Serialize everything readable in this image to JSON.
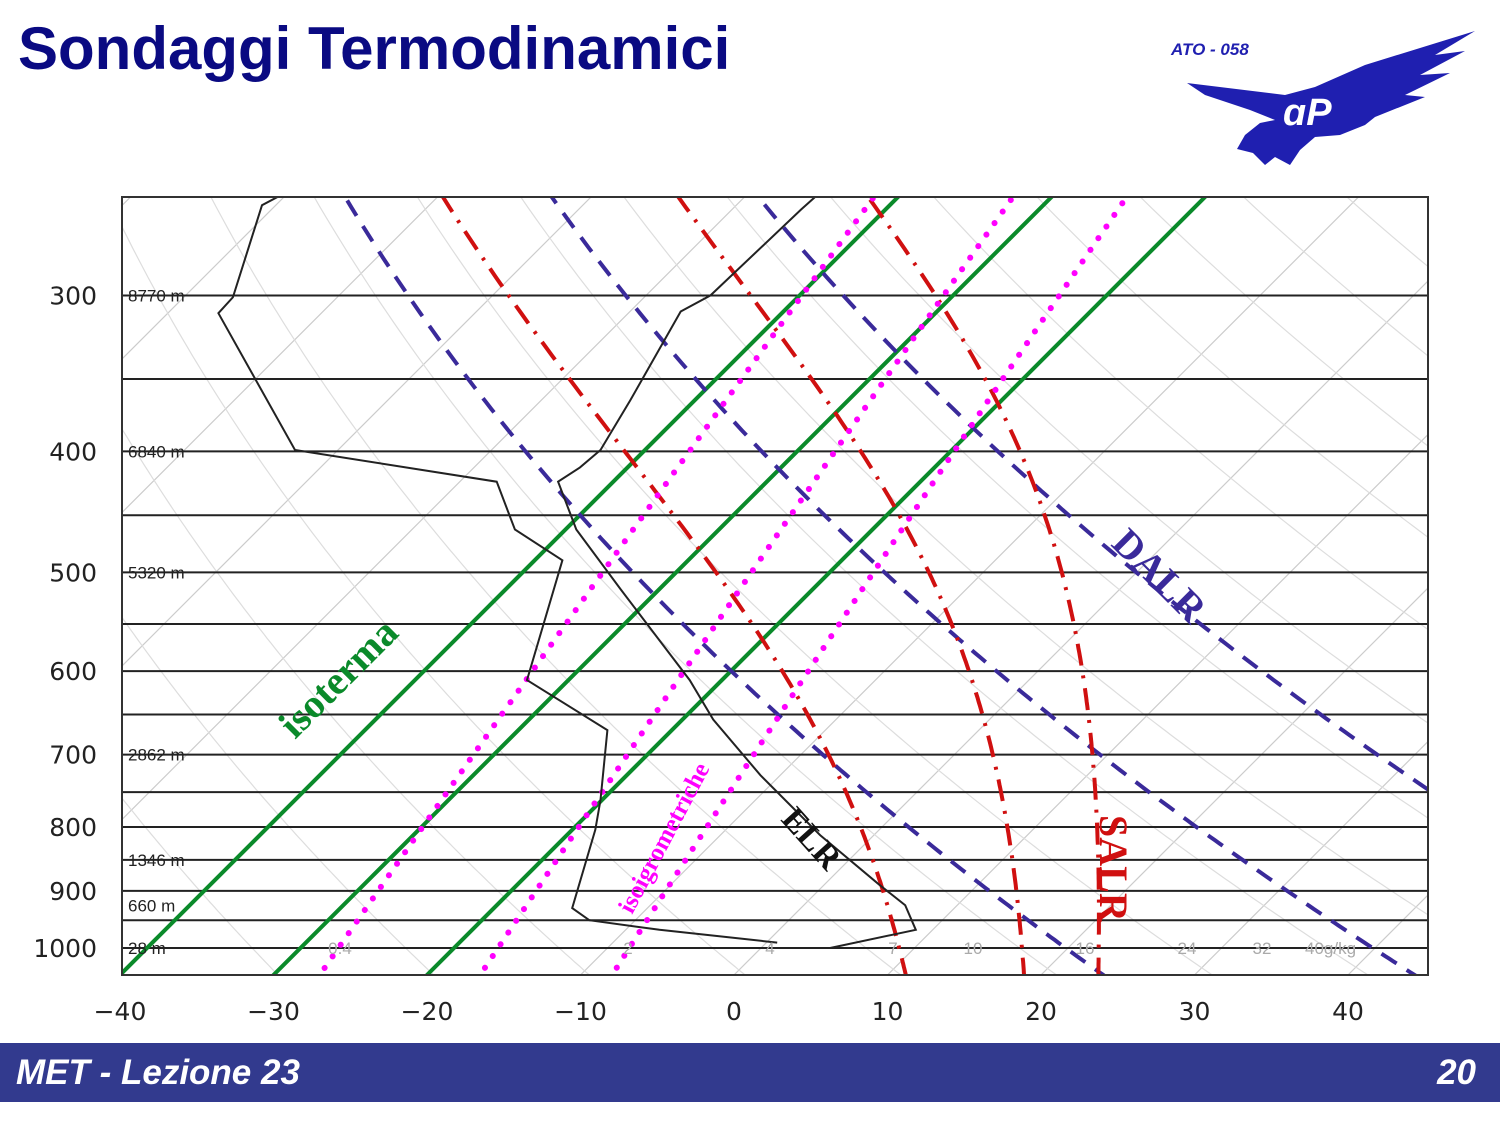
{
  "slide": {
    "title": "Sondaggi Termodinamici",
    "footer_left": "MET - Lezione 23",
    "page_number": "20"
  },
  "logo": {
    "text": "ATO - 058",
    "monogram": "ATP",
    "color": "#1f1fb0"
  },
  "colors": {
    "title": "#0a0a82",
    "footer_bg": "#323a8e",
    "isotherm": "#0a8a2a",
    "dalr": "#3a2a9a",
    "salr": "#d01010",
    "mixing_ratio": "#ff00ff",
    "sounding": "#222222"
  },
  "chart_data": {
    "type": "line",
    "diagram": "skew-T log-p",
    "x_axis": {
      "ticks": [
        -40,
        -30,
        -20,
        -10,
        0,
        10,
        20,
        30,
        40
      ],
      "tick_labels": [
        "-40",
        "-30",
        "-20",
        "-10",
        "0",
        "10",
        "20",
        "30",
        "40"
      ]
    },
    "y_axis": {
      "scale": "log",
      "inverted": true,
      "ticks": [
        300,
        400,
        500,
        600,
        700,
        800,
        900,
        1000
      ],
      "tick_labels": [
        "300",
        "400",
        "500",
        "600",
        "700",
        "800",
        "900",
        "1000"
      ],
      "range": [
        1050,
        250
      ],
      "gridlines": [
        300,
        350,
        400,
        450,
        500,
        550,
        600,
        650,
        700,
        750,
        800,
        850,
        900,
        950,
        1000
      ]
    },
    "height_labels": [
      {
        "p": 300,
        "text": "8770 m"
      },
      {
        "p": 400,
        "text": "6840 m"
      },
      {
        "p": 500,
        "text": "5320 m"
      },
      {
        "p": 700,
        "text": "2862 m"
      },
      {
        "p": 850,
        "text": "1346 m"
      },
      {
        "p": 925,
        "text": "660 m"
      },
      {
        "p": 1000,
        "text": "28 m"
      }
    ],
    "mixing_ratio_tick_labels": [
      "0.4",
      "2",
      "4",
      "7",
      "10",
      "16",
      "24",
      "32",
      "40g/kg"
    ],
    "series": [
      {
        "name": "isoterma",
        "kind": "isotherm",
        "values_degC": [
          -40,
          -30,
          -20
        ]
      },
      {
        "name": "DALR",
        "kind": "dry_adiabat",
        "theta_K": [
          293,
          313,
          333
        ]
      },
      {
        "name": "SALR",
        "kind": "moist_adiabat",
        "T_at_1000hPa_degC": [
          9,
          17,
          22
        ]
      },
      {
        "name": "isoigrometriche",
        "kind": "mixing_ratio",
        "w_gkg": [
          0.4,
          1,
          2
        ]
      },
      {
        "name": "ELR",
        "kind": "temperature_profile",
        "points": [
          [
            1000,
            4.5
          ],
          [
            967,
            8.9
          ],
          [
            924,
            6.6
          ],
          [
            890,
            3.6
          ],
          [
            812,
            -3.5
          ],
          [
            727,
            -11.3
          ],
          [
            656,
            -18.0
          ],
          [
            610,
            -22.1
          ],
          [
            516,
            -32.5
          ],
          [
            462,
            -39.3
          ],
          [
            423,
            -43.6
          ],
          [
            412,
            -43.1
          ],
          [
            399,
            -42.9
          ],
          [
            364,
            -44.2
          ],
          [
            309,
            -46.7
          ],
          [
            300,
            -45.8
          ],
          [
            256,
            -45.5
          ],
          [
            250,
            -45.4
          ]
        ]
      },
      {
        "kind": "dewpoint_profile",
        "points": [
          [
            990,
            0.7
          ],
          [
            967,
            -7.8
          ],
          [
            950,
            -13.0
          ],
          [
            929,
            -14.9
          ],
          [
            804,
            -18.5
          ],
          [
            761,
            -20.1
          ],
          [
            669,
            -24.2
          ],
          [
            610,
            -32.7
          ],
          [
            489,
            -38.2
          ],
          [
            462,
            -43.3
          ],
          [
            423,
            -47.6
          ],
          [
            399,
            -62.8
          ],
          [
            310,
            -76.7
          ],
          [
            301,
            -76.8
          ],
          [
            254,
            -80.9
          ],
          [
            250,
            -80.4
          ]
        ]
      }
    ]
  }
}
